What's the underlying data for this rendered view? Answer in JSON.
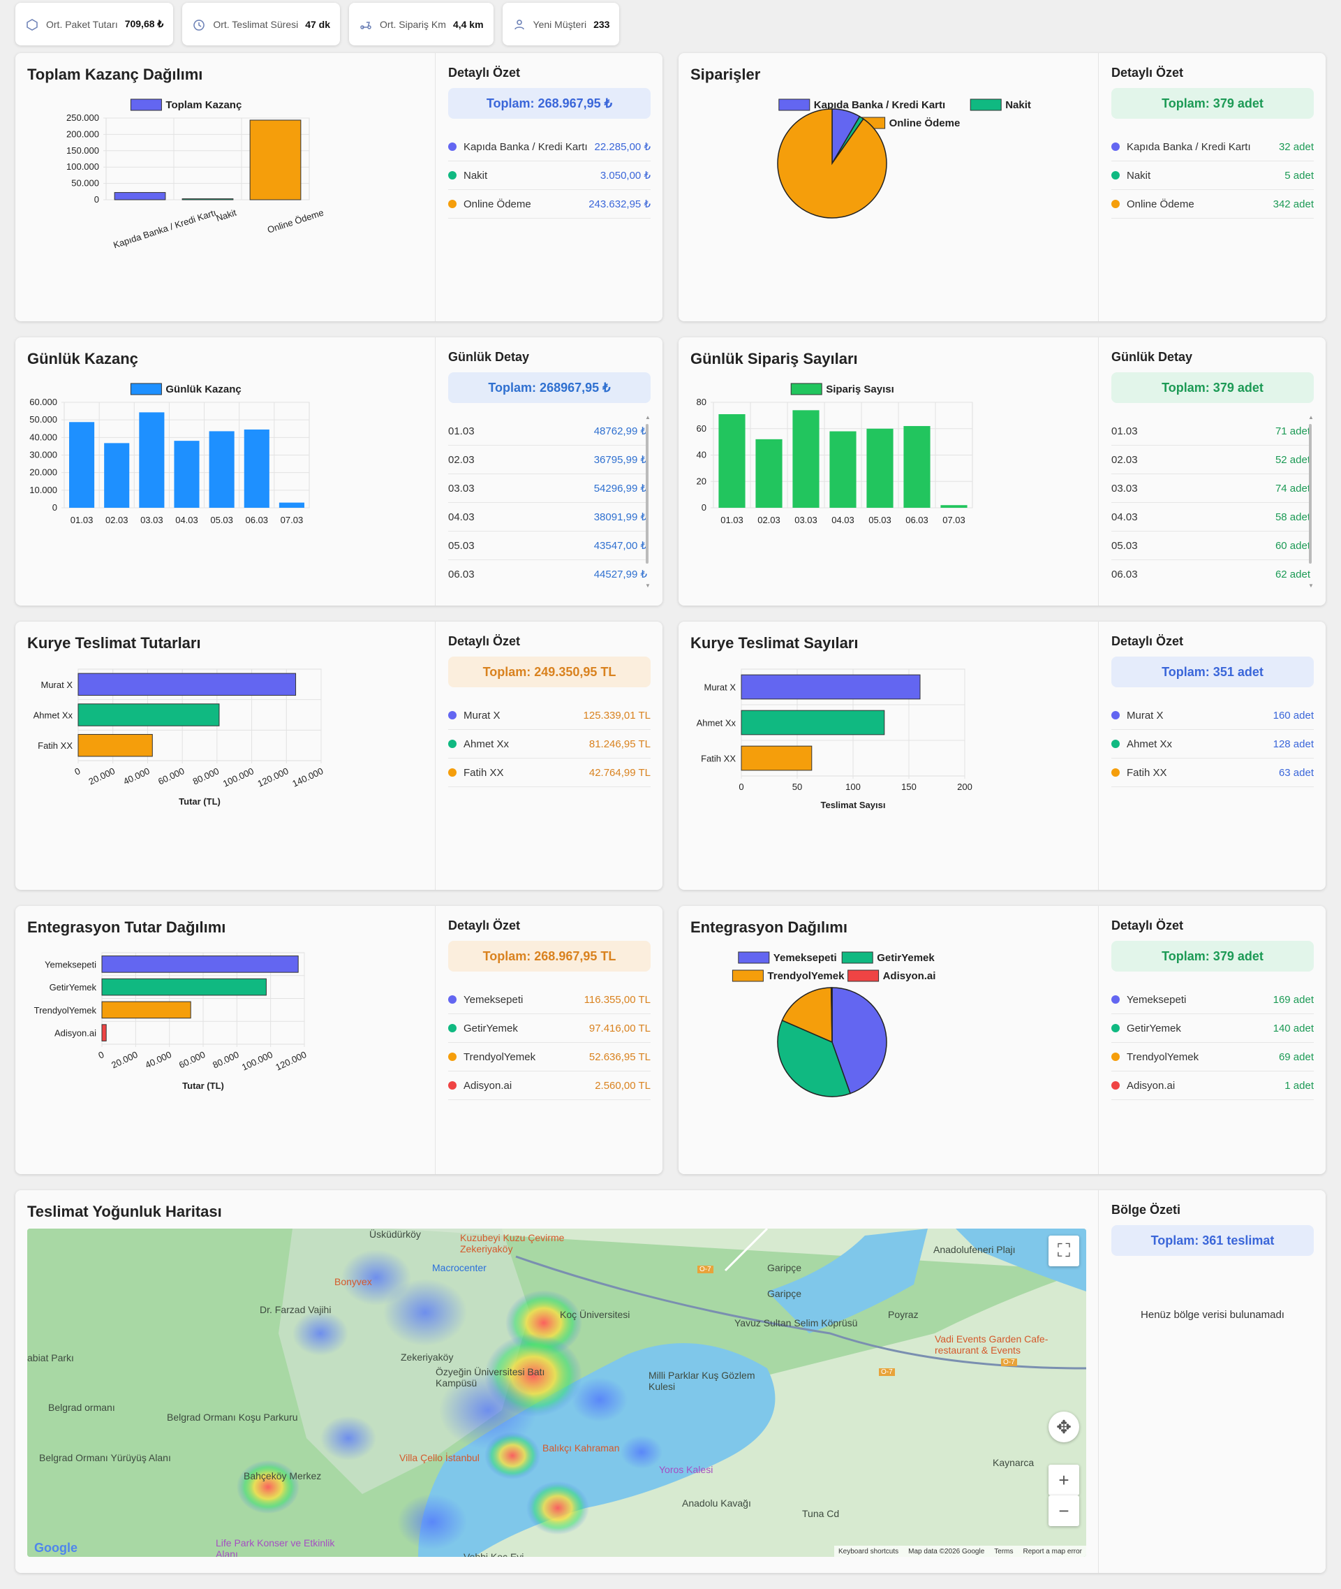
{
  "kpis": [
    {
      "icon": "package-icon",
      "label": "Ort. Paket Tutarı",
      "value": "709,68 ₺"
    },
    {
      "icon": "stopwatch-icon",
      "label": "Ort. Teslimat Süresi",
      "value": "47 dk"
    },
    {
      "icon": "scooter-icon",
      "label": "Ort. Sipariş Km",
      "value": "4,4 km"
    },
    {
      "icon": "new-user-icon",
      "label": "Yeni Müşteri",
      "value": "233"
    }
  ],
  "colors": {
    "blue": "#6366f1",
    "green": "#10b981",
    "orange": "#f59e0b",
    "red": "#ef4444",
    "dayBlue": "#1e90ff",
    "dayGreen": "#22c55e"
  },
  "cards": {
    "revenue": {
      "title": "Toplam Kazanç Dağılımı",
      "side_title": "Detaylı Özet",
      "total": "Toplam: 268.967,95 ₺",
      "items": [
        {
          "label": "Kapıda Banka / Kredi Kartı",
          "value": "22.285,00 ₺"
        },
        {
          "label": "Nakit",
          "value": "3.050,00 ₺"
        },
        {
          "label": "Online Ödeme",
          "value": "243.632,95 ₺"
        }
      ]
    },
    "orders": {
      "title": "Siparişler",
      "side_title": "Detaylı Özet",
      "total": "Toplam: 379 adet",
      "items": [
        {
          "label": "Kapıda Banka / Kredi Kartı",
          "value": "32 adet"
        },
        {
          "label": "Nakit",
          "value": "5 adet"
        },
        {
          "label": "Online Ödeme",
          "value": "342 adet"
        }
      ]
    },
    "daily_revenue": {
      "title": "Günlük Kazanç",
      "side_title": "Günlük Detay",
      "total": "Toplam: 268967,95 ₺",
      "rows": [
        {
          "d": "01.03",
          "v": "48762,99 ₺"
        },
        {
          "d": "02.03",
          "v": "36795,99 ₺"
        },
        {
          "d": "03.03",
          "v": "54296,99 ₺"
        },
        {
          "d": "04.03",
          "v": "38091,99 ₺"
        },
        {
          "d": "05.03",
          "v": "43547,00 ₺"
        },
        {
          "d": "06.03",
          "v": "44527,99 ₺"
        }
      ]
    },
    "daily_orders": {
      "title": "Günlük Sipariş Sayıları",
      "side_title": "Günlük Detay",
      "total": "Toplam: 379 adet",
      "rows": [
        {
          "d": "01.03",
          "v": "71 adet"
        },
        {
          "d": "02.03",
          "v": "52 adet"
        },
        {
          "d": "03.03",
          "v": "74 adet"
        },
        {
          "d": "04.03",
          "v": "58 adet"
        },
        {
          "d": "05.03",
          "v": "60 adet"
        },
        {
          "d": "06.03",
          "v": "62 adet"
        }
      ]
    },
    "courier_amount": {
      "title": "Kurye Teslimat Tutarları",
      "side_title": "Detaylı Özet",
      "total": "Toplam: 249.350,95 TL",
      "items": [
        {
          "label": "Murat X",
          "value": "125.339,01 TL"
        },
        {
          "label": "Ahmet Xx",
          "value": "81.246,95 TL"
        },
        {
          "label": "Fatih XX",
          "value": "42.764,99 TL"
        }
      ]
    },
    "courier_count": {
      "title": "Kurye Teslimat Sayıları",
      "side_title": "Detaylı Özet",
      "total": "Toplam: 351 adet",
      "items": [
        {
          "label": "Murat X",
          "value": "160 adet"
        },
        {
          "label": "Ahmet Xx",
          "value": "128 adet"
        },
        {
          "label": "Fatih XX",
          "value": "63 adet"
        }
      ]
    },
    "integration_amount": {
      "title": "Entegrasyon Tutar Dağılımı",
      "side_title": "Detaylı Özet",
      "total": "Toplam: 268.967,95 TL",
      "items": [
        {
          "label": "Yemeksepeti",
          "value": "116.355,00 TL"
        },
        {
          "label": "GetirYemek",
          "value": "97.416,00 TL"
        },
        {
          "label": "TrendyolYemek",
          "value": "52.636,95 TL"
        },
        {
          "label": "Adisyon.ai",
          "value": "2.560,00 TL"
        }
      ]
    },
    "integration_count": {
      "title": "Entegrasyon Dağılımı",
      "side_title": "Detaylı Özet",
      "total": "Toplam: 379 adet",
      "items": [
        {
          "label": "Yemeksepeti",
          "value": "169 adet"
        },
        {
          "label": "GetirYemek",
          "value": "140 adet"
        },
        {
          "label": "TrendyolYemek",
          "value": "69 adet"
        },
        {
          "label": "Adisyon.ai",
          "value": "1 adet"
        }
      ]
    },
    "map": {
      "title": "Teslimat Yoğunluk Haritası",
      "side_title": "Bölge Özeti",
      "total": "Toplam: 361 teslimat",
      "empty": "Henüz bölge verisi bulunamadı",
      "labels": [
        "Üsküdürköy",
        "Kuzubeyi Kuzu Çevirme Zekeriyaköy",
        "Macrocenter",
        "Bonyvex",
        "Dr. Farzad Vajihi",
        "Koç Üniversitesi",
        "Garipçe",
        "Garipçe",
        "Anadolufeneri Plajı",
        "Poyraz",
        "Yavuz Sultan Selim Köprüsü",
        "Vadi Events Garden Cafe-restaurant & Events",
        "abiat Parkı",
        "Zekeriyaköy",
        "Özyeğin Üniversitesi Batı Kampüsü",
        "Milli Parklar Kuş Gözlem Kulesi",
        "Belgrad ormanı",
        "Belgrad Ormanı Koşu Parkuru",
        "Belgrad Ormanı Yürüyüş Alanı",
        "Balıkçı Kahraman",
        "Villa Çello İstanbul",
        "Yoros Kalesi",
        "Kaynarca",
        "Bahçeköy Merkez",
        "Anadolu Kavağı",
        "Life Park Konser ve Etkinlik Alanı",
        "Vehbi Koç Evi",
        "Tuna Cd",
        "O-7",
        "O-7",
        "O-7"
      ],
      "footer": [
        "Keyboard shortcuts",
        "Map data ©2026 Google",
        "Terms",
        "Report a map error"
      ],
      "google": "Google"
    }
  },
  "chart_data": [
    {
      "type": "bar",
      "title": "",
      "legend": [
        "Toplam Kazanç"
      ],
      "categories": [
        "Kapıda Banka / Kredi Kartı",
        "Nakit",
        "Online Ödeme"
      ],
      "values": [
        22285,
        3050,
        243632.95
      ],
      "ylim": [
        0,
        250000
      ],
      "yticks": [
        "0",
        "50.000",
        "100.000",
        "150.000",
        "200.000",
        "250.000"
      ],
      "colors": [
        "#6366f1",
        "#10b981",
        "#f59e0b"
      ]
    },
    {
      "type": "pie",
      "legend": [
        "Kapıda Banka / Kredi Kartı",
        "Nakit",
        "Online Ödeme"
      ],
      "values": [
        32,
        5,
        342
      ],
      "colors": [
        "#6366f1",
        "#10b981",
        "#f59e0b"
      ]
    },
    {
      "type": "bar",
      "legend": [
        "Günlük Kazanç"
      ],
      "categories": [
        "01.03",
        "02.03",
        "03.03",
        "04.03",
        "05.03",
        "06.03",
        "07.03"
      ],
      "values": [
        48762.99,
        36795.99,
        54296.99,
        38091.99,
        43547,
        44527.99,
        2945
      ],
      "ylim": [
        0,
        60000
      ],
      "yticks": [
        "0",
        "10.000",
        "20.000",
        "30.000",
        "40.000",
        "50.000",
        "60.000"
      ],
      "color": "#1e90ff"
    },
    {
      "type": "bar",
      "legend": [
        "Sipariş Sayısı"
      ],
      "categories": [
        "01.03",
        "02.03",
        "03.03",
        "04.03",
        "05.03",
        "06.03",
        "07.03"
      ],
      "values": [
        71,
        52,
        74,
        58,
        60,
        62,
        2
      ],
      "ylim": [
        0,
        80
      ],
      "yticks": [
        "0",
        "20",
        "40",
        "60",
        "80"
      ],
      "color": "#22c55e"
    },
    {
      "type": "hbar",
      "xlabel": "Tutar (TL)",
      "categories": [
        "Murat X",
        "Ahmet Xx",
        "Fatih XX"
      ],
      "values": [
        125339.01,
        81246.95,
        42764.99
      ],
      "xlim": [
        0,
        140000
      ],
      "xticks": [
        "0",
        "20.000",
        "40.000",
        "60.000",
        "80.000",
        "100.000",
        "120.000",
        "140.000"
      ],
      "colors": [
        "#6366f1",
        "#10b981",
        "#f59e0b"
      ]
    },
    {
      "type": "hbar",
      "xlabel": "Teslimat Sayısı",
      "categories": [
        "Murat X",
        "Ahmet Xx",
        "Fatih XX"
      ],
      "values": [
        160,
        128,
        63
      ],
      "xlim": [
        0,
        200
      ],
      "xticks": [
        "0",
        "50",
        "100",
        "150",
        "200"
      ],
      "colors": [
        "#6366f1",
        "#10b981",
        "#f59e0b"
      ]
    },
    {
      "type": "hbar",
      "xlabel": "Tutar (TL)",
      "categories": [
        "Yemeksepeti",
        "GetirYemek",
        "TrendyolYemek",
        "Adisyon.ai"
      ],
      "values": [
        116355,
        97416,
        52636.95,
        2560
      ],
      "xlim": [
        0,
        120000
      ],
      "xticks": [
        "0",
        "20.000",
        "40.000",
        "60.000",
        "80.000",
        "100.000",
        "120.000"
      ],
      "colors": [
        "#6366f1",
        "#10b981",
        "#f59e0b",
        "#ef4444"
      ]
    },
    {
      "type": "pie",
      "legend": [
        "Yemeksepeti",
        "GetirYemek",
        "TrendyolYemek",
        "Adisyon.ai"
      ],
      "values": [
        169,
        140,
        69,
        1
      ],
      "colors": [
        "#6366f1",
        "#10b981",
        "#f59e0b",
        "#ef4444"
      ]
    }
  ]
}
